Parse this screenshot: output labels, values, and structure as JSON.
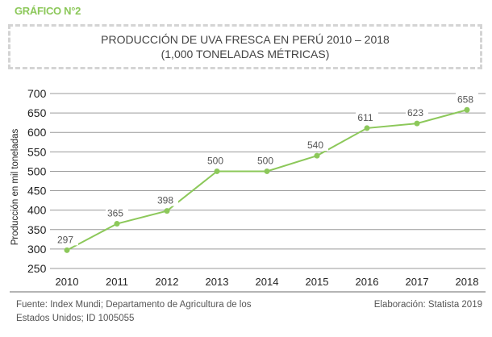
{
  "header": {
    "label": "GRÁFICO N°2"
  },
  "chart_data": {
    "type": "line",
    "title": "PRODUCCIÓN DE UVA FRESCA EN PERÚ 2010 – 2018",
    "subtitle": "(1,000 TONELADAS MÉTRICAS)",
    "xlabel": "",
    "ylabel": "Producción en mil toneladas",
    "categories": [
      "2010",
      "2011",
      "2012",
      "2013",
      "2014",
      "2015",
      "2016",
      "2017",
      "2018"
    ],
    "values": [
      297,
      365,
      398,
      500,
      500,
      540,
      611,
      623,
      658
    ],
    "yticks": [
      700,
      650,
      600,
      550,
      500,
      450,
      400,
      350,
      300,
      250
    ],
    "ylim": [
      250,
      700
    ],
    "grid": true,
    "line_color": "#8cc85a"
  },
  "footer": {
    "source_line1": "Fuente: Index Mundi; Departamento de Agricultura de los",
    "source_line2": "Estados Unidos; ID 1005055",
    "credit": "Elaboración: Statista 2019"
  }
}
